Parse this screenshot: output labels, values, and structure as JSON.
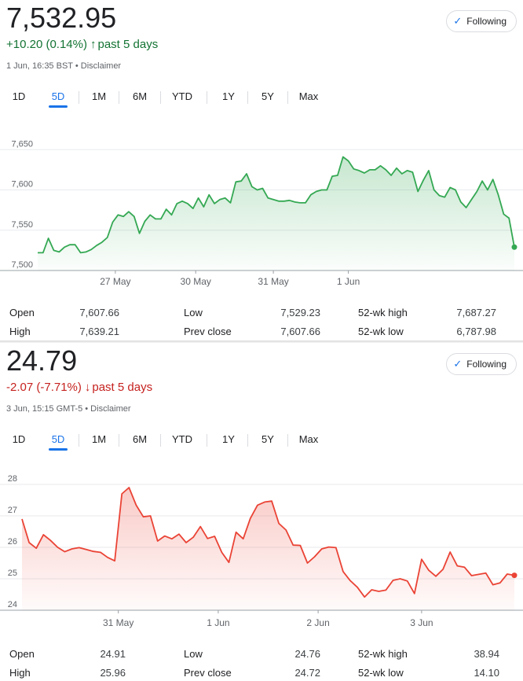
{
  "panel1": {
    "price": "7,532.95",
    "change": "+10.20 (0.14%)",
    "period": "past 5 days",
    "timestamp": "1 Jun, 16:35 BST • Disclaimer",
    "follow_label": "Following",
    "ranges": [
      "1D",
      "5D",
      "1M",
      "6M",
      "YTD",
      "1Y",
      "5Y",
      "Max"
    ],
    "active_range": "5D",
    "stats": [
      {
        "label": "Open",
        "value": "7,607.66"
      },
      {
        "label": "High",
        "value": "7,639.21"
      },
      {
        "label": "Low",
        "value": "7,529.23"
      },
      {
        "label": "Prev close",
        "value": "7,607.66"
      },
      {
        "label": "52-wk high",
        "value": "7,687.27"
      },
      {
        "label": "52-wk low",
        "value": "6,787.98"
      }
    ]
  },
  "panel2": {
    "price": "24.79",
    "change": "-2.07 (-7.71%)",
    "period": "past 5 days",
    "timestamp": "3 Jun, 15:15 GMT-5 • Disclaimer",
    "follow_label": "Following",
    "ranges": [
      "1D",
      "5D",
      "1M",
      "6M",
      "YTD",
      "1Y",
      "5Y",
      "Max"
    ],
    "active_range": "5D",
    "stats": [
      {
        "label": "Open",
        "value": "24.91"
      },
      {
        "label": "High",
        "value": "25.96"
      },
      {
        "label": "Low",
        "value": "24.76"
      },
      {
        "label": "Prev close",
        "value": "24.72"
      },
      {
        "label": "52-wk high",
        "value": "38.94"
      },
      {
        "label": "52-wk low",
        "value": "14.10"
      }
    ]
  },
  "colors": {
    "up": "#137333",
    "up_line": "#34a853",
    "down": "#c5221f",
    "down_line": "#ea4335",
    "accent": "#1a73e8"
  },
  "chart_data": [
    {
      "type": "area",
      "ylim": [
        7500,
        7660
      ],
      "yticks": [
        7500,
        7550,
        7600,
        7650
      ],
      "ytick_labels": [
        "7,500",
        "7,550",
        "7,600",
        "7,650"
      ],
      "xtick_labels": [
        "27 May",
        "30 May",
        "31 May",
        "1 Jun"
      ],
      "xtick_index": [
        14.5,
        29.5,
        44,
        58
      ],
      "values": [
        7522,
        7522,
        7540,
        7525,
        7523,
        7529,
        7532,
        7532,
        7522,
        7523,
        7526,
        7531,
        7535,
        7541,
        7560,
        7569,
        7567,
        7573,
        7567,
        7546,
        7561,
        7569,
        7564,
        7564,
        7576,
        7569,
        7583,
        7586,
        7583,
        7577,
        7590,
        7579,
        7594,
        7583,
        7588,
        7590,
        7584,
        7610,
        7611,
        7620,
        7604,
        7600,
        7602,
        7590,
        7588,
        7586,
        7586,
        7587,
        7585,
        7584,
        7584,
        7594,
        7598,
        7600,
        7600,
        7617,
        7618,
        7641,
        7636,
        7626,
        7624,
        7621,
        7625,
        7625,
        7630,
        7625,
        7618,
        7627,
        7620,
        7624,
        7622,
        7598,
        7612,
        7624,
        7600,
        7593,
        7591,
        7603,
        7600,
        7585,
        7578,
        7588,
        7598,
        7611,
        7600,
        7613,
        7594,
        7570,
        7565,
        7529
      ],
      "grid": true
    },
    {
      "type": "area",
      "ylim": [
        24,
        28.2
      ],
      "yticks": [
        24,
        25,
        26,
        27,
        28
      ],
      "ytick_labels": [
        "24",
        "25",
        "26",
        "27",
        "28"
      ],
      "xtick_labels": [
        "31 May",
        "1 Jun",
        "2 Jun",
        "3 Jun"
      ],
      "xtick_index": [
        13.5,
        27.5,
        41.5,
        56
      ],
      "values": [
        26.9,
        26.15,
        25.97,
        26.4,
        26.22,
        26.0,
        25.86,
        25.95,
        25.99,
        25.93,
        25.87,
        25.84,
        25.68,
        25.57,
        27.7,
        27.9,
        27.34,
        26.97,
        27.0,
        26.2,
        26.36,
        26.27,
        26.42,
        26.15,
        26.32,
        26.66,
        26.28,
        26.35,
        25.84,
        25.52,
        26.48,
        26.27,
        26.92,
        27.34,
        27.44,
        27.47,
        26.76,
        26.55,
        26.07,
        26.06,
        25.5,
        25.7,
        25.95,
        26.01,
        25.99,
        25.23,
        24.94,
        24.73,
        24.42,
        24.65,
        24.6,
        24.64,
        24.95,
        25.0,
        24.93,
        24.53,
        25.62,
        25.27,
        25.08,
        25.3,
        25.85,
        25.41,
        25.37,
        25.1,
        25.14,
        25.18,
        24.81,
        24.87,
        25.15,
        25.11
      ],
      "grid": true
    }
  ]
}
